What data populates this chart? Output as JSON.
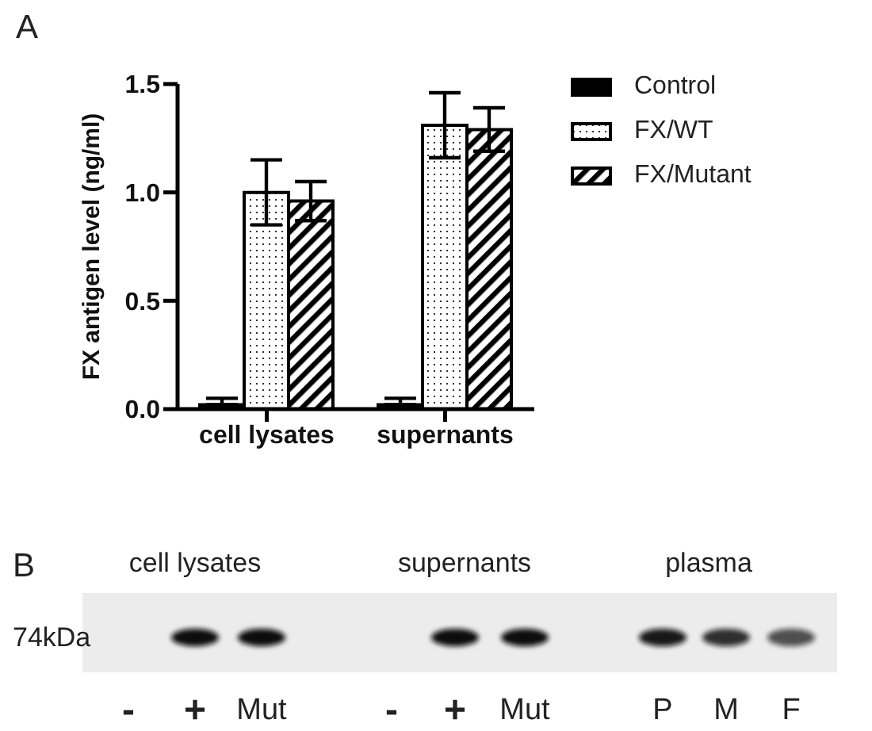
{
  "chart_data": [
    {
      "type": "bar",
      "title": "A",
      "ylabel": "FX antigen level (ng/ml)",
      "categories": [
        "cell lysates",
        "supernants"
      ],
      "series": [
        {
          "name": "Control",
          "color": "#000000",
          "values": [
            0.02,
            0.02
          ],
          "errors": [
            [
              0.02,
              0.05
            ],
            [
              0.02,
              0.05
            ]
          ]
        },
        {
          "name": "FX/WT",
          "color": "#000000",
          "values": [
            1.0,
            1.31
          ],
          "errors": [
            0.15,
            0.15
          ]
        },
        {
          "name": "FX/Mutant",
          "color": "#000000",
          "values": [
            0.96,
            1.29
          ],
          "errors": [
            0.09,
            0.1
          ]
        }
      ],
      "ylim": [
        0,
        1.5
      ],
      "yticks": [
        {
          "value": 0,
          "label": "0.0"
        },
        0.5,
        {
          "value": 1,
          "label": "1.0"
        },
        {
          "value": 1.5,
          "label": "1.5"
        }
      ],
      "legend": "top right"
    },
    {
      "type": "other",
      "title": "B",
      "annotations": [
        "cell lysates",
        "supernants",
        "plasma",
        "74kDa",
        "-",
        "+",
        "Mut",
        "-",
        "+",
        "Mut",
        "P",
        "M",
        "F"
      ]
    }
  ]
}
